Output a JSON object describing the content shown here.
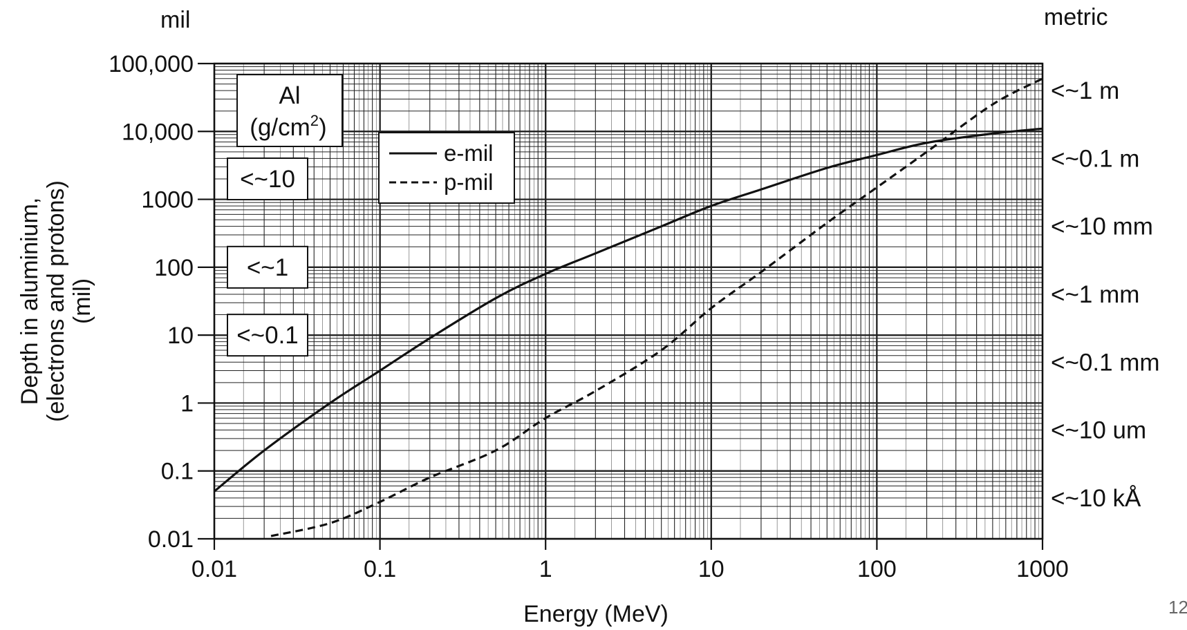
{
  "page_number": "12",
  "chart_data": {
    "type": "line",
    "x_scale": "log",
    "y_scale": "log",
    "xlim": [
      0.01,
      1000
    ],
    "ylim": [
      0.01,
      100000
    ],
    "grid": true,
    "xlabel": "Energy (MeV)",
    "ylabel_lines": [
      "Depth in aluminium,",
      "(electrons and protons)",
      "(mil)"
    ],
    "left_axis_unit": "mil",
    "right_axis_unit": "metric",
    "x_ticks": [
      {
        "value": 0.01,
        "label": "0.01"
      },
      {
        "value": 0.1,
        "label": "0.1"
      },
      {
        "value": 1,
        "label": "1"
      },
      {
        "value": 10,
        "label": "10"
      },
      {
        "value": 100,
        "label": "100"
      },
      {
        "value": 1000,
        "label": "1000"
      }
    ],
    "y_ticks": [
      {
        "value": 0.01,
        "label": "0.01"
      },
      {
        "value": 0.1,
        "label": "0.1"
      },
      {
        "value": 1,
        "label": "1"
      },
      {
        "value": 10,
        "label": "10"
      },
      {
        "value": 100,
        "label": "100"
      },
      {
        "value": 1000,
        "label": "1000"
      },
      {
        "value": 10000,
        "label": "10,000"
      },
      {
        "value": 100000,
        "label": "100,000"
      }
    ],
    "right_ticks": [
      {
        "value": 40000,
        "label": "<~1 m"
      },
      {
        "value": 4000,
        "label": "<~0.1 m"
      },
      {
        "value": 400,
        "label": "<~10 mm"
      },
      {
        "value": 40,
        "label": "<~1 mm"
      },
      {
        "value": 4,
        "label": "<~0.1 mm"
      },
      {
        "value": 0.4,
        "label": "<~10 um"
      },
      {
        "value": 0.04,
        "label": "<~10 kÅ"
      }
    ],
    "density_boxes": {
      "header": [
        "Al",
        "(g/cm",
        "2",
        ")"
      ],
      "items": [
        {
          "value": 2000,
          "label": "<~10"
        },
        {
          "value": 100,
          "label": "<~1"
        },
        {
          "value": 10,
          "label": "<~0.1"
        }
      ]
    },
    "series": [
      {
        "name": "e-mil",
        "style": "solid",
        "points": [
          [
            0.01,
            0.05
          ],
          [
            0.02,
            0.2
          ],
          [
            0.05,
            1
          ],
          [
            0.1,
            3
          ],
          [
            0.2,
            9
          ],
          [
            0.5,
            35
          ],
          [
            1,
            80
          ],
          [
            2,
            160
          ],
          [
            5,
            400
          ],
          [
            10,
            800
          ],
          [
            20,
            1400
          ],
          [
            50,
            2900
          ],
          [
            100,
            4500
          ],
          [
            200,
            6800
          ],
          [
            500,
            9300
          ],
          [
            1000,
            11000
          ]
        ]
      },
      {
        "name": "p-mil",
        "style": "dashed",
        "points": [
          [
            0.022,
            0.011
          ],
          [
            0.05,
            0.017
          ],
          [
            0.1,
            0.035
          ],
          [
            0.2,
            0.08
          ],
          [
            0.5,
            0.2
          ],
          [
            1,
            0.6
          ],
          [
            2,
            1.5
          ],
          [
            5,
            6
          ],
          [
            10,
            25
          ],
          [
            20,
            85
          ],
          [
            50,
            450
          ],
          [
            100,
            1500
          ],
          [
            200,
            5000
          ],
          [
            500,
            25000
          ],
          [
            1000,
            60000
          ]
        ]
      }
    ]
  }
}
